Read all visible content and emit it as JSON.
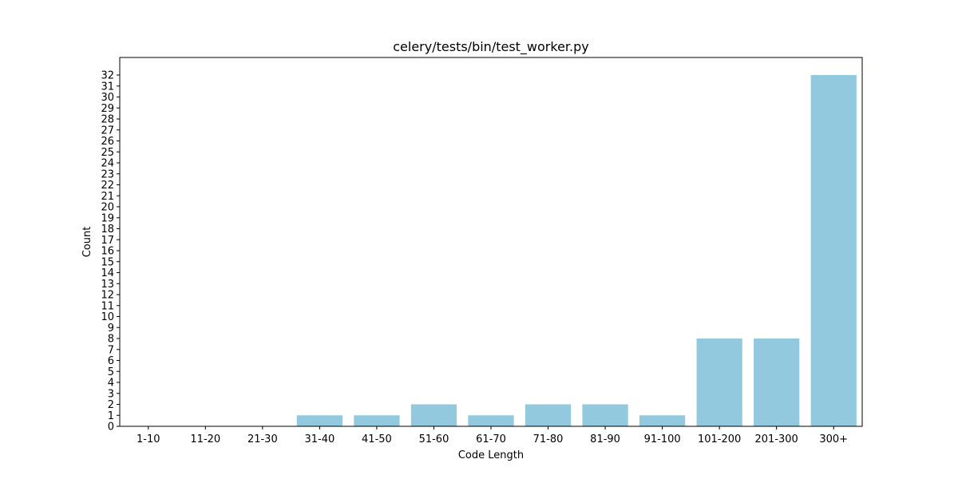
{
  "chart_data": {
    "type": "bar",
    "title": "celery/tests/bin/test_worker.py",
    "xlabel": "Code Length",
    "ylabel": "Count",
    "categories": [
      "1-10",
      "11-20",
      "21-30",
      "31-40",
      "41-50",
      "51-60",
      "61-70",
      "71-80",
      "81-90",
      "91-100",
      "101-200",
      "201-300",
      "300+"
    ],
    "values": [
      0,
      0,
      0,
      1,
      1,
      2,
      1,
      2,
      2,
      1,
      8,
      8,
      32
    ],
    "ylim": [
      0,
      33.6
    ],
    "yticks": [
      0,
      1,
      2,
      3,
      4,
      5,
      6,
      7,
      8,
      9,
      10,
      11,
      12,
      13,
      14,
      15,
      16,
      17,
      18,
      19,
      20,
      21,
      22,
      23,
      24,
      25,
      26,
      27,
      28,
      29,
      30,
      31,
      32
    ],
    "bar_color": "#92c9df",
    "grid": false,
    "legend": "none"
  }
}
